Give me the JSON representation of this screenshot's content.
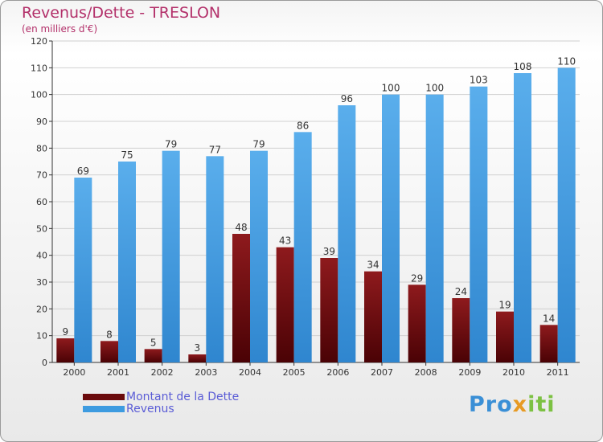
{
  "title": "Revenus/Dette - TRESLON",
  "subtitle": "(en milliers d'€)",
  "logo": {
    "parts": [
      "Pro",
      "x",
      "iti"
    ]
  },
  "colors": {
    "debt": "#7a0f12",
    "revenue": "#4ca6e8",
    "title": "#b3306a",
    "legend_text": "#5a5cd6"
  },
  "chart_data": {
    "type": "bar",
    "categories": [
      "2000",
      "2001",
      "2002",
      "2003",
      "2004",
      "2005",
      "2006",
      "2007",
      "2008",
      "2009",
      "2010",
      "2011"
    ],
    "series": [
      {
        "name": "Montant de la Dette",
        "values": [
          9,
          8,
          5,
          3,
          48,
          43,
          39,
          34,
          29,
          24,
          19,
          14
        ]
      },
      {
        "name": "Revenus",
        "values": [
          69,
          75,
          79,
          77,
          79,
          86,
          96,
          100,
          100,
          103,
          108,
          110
        ]
      }
    ],
    "ylim": [
      0,
      120
    ],
    "yticks": [
      0,
      10,
      20,
      30,
      40,
      50,
      60,
      70,
      80,
      90,
      100,
      110,
      120
    ],
    "grid": true,
    "legend": "bottom-left"
  }
}
